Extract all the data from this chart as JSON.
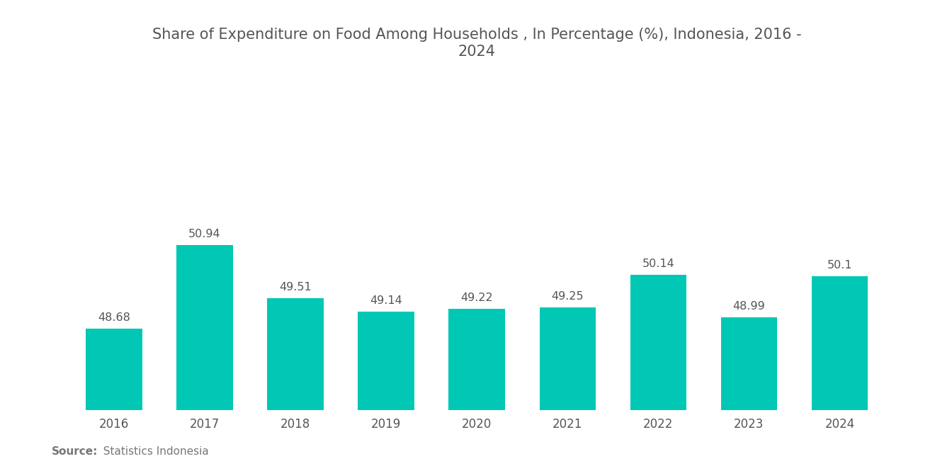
{
  "title_line1": "Share of Expenditure on Food Among Households , In Percentage (%), Indonesia, 2016 -",
  "title_line2": "2024",
  "years": [
    "2016",
    "2017",
    "2018",
    "2019",
    "2020",
    "2021",
    "2022",
    "2023",
    "2024"
  ],
  "values": [
    48.68,
    50.94,
    49.51,
    49.14,
    49.22,
    49.25,
    50.14,
    48.99,
    50.1
  ],
  "bar_color": "#00C8B4",
  "background_color": "#ffffff",
  "title_fontsize": 15,
  "label_fontsize": 11.5,
  "tick_fontsize": 12,
  "source_bold": "Source:",
  "source_normal": "  Statistics Indonesia",
  "source_fontsize": 11,
  "ylim_min": 46.5,
  "ylim_max": 53
}
